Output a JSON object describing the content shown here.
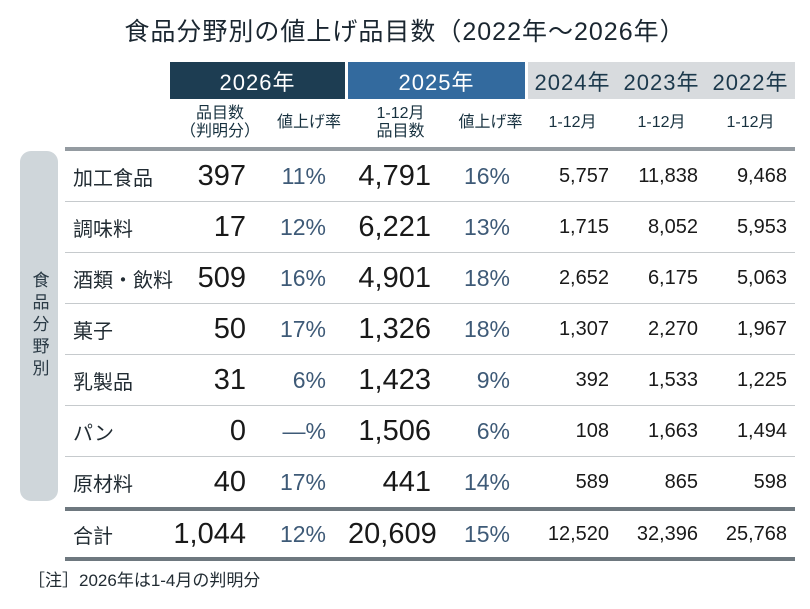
{
  "title": "食品分野別の値上げ品目数（2022年～2026年）",
  "side_label": "食品分野別",
  "note": "［注］2026年は1-4月の判明分",
  "colors": {
    "header_2026_bg": "#1d3d52",
    "header_2025_bg": "#336a9e",
    "header_past_bg": "#d8dbde",
    "rate_text": "#3e5a77",
    "side_bar_bg": "#cfd6da",
    "number_text": "#191919"
  },
  "table": {
    "year_groups": {
      "y2026": "2026年",
      "y2025": "2025年",
      "y2024": "2024年",
      "y2023": "2023年",
      "y2022": "2022年"
    },
    "sub_headers": {
      "items_2026": "品目数\n（判明分）",
      "rate_2026": "値上げ率",
      "items_2025": "1-12月\n品目数",
      "rate_2025": "値上げ率",
      "m_2024": "1-12月",
      "m_2023": "1-12月",
      "m_2022": "1-12月"
    },
    "rows": [
      {
        "category": "加工食品",
        "items_2026": "397",
        "rate_2026": "11%",
        "items_2025": "4,791",
        "rate_2025": "16%",
        "y2024": "5,757",
        "y2023": "11,838",
        "y2022": "9,468"
      },
      {
        "category": "調味料",
        "items_2026": "17",
        "rate_2026": "12%",
        "items_2025": "6,221",
        "rate_2025": "13%",
        "y2024": "1,715",
        "y2023": "8,052",
        "y2022": "5,953"
      },
      {
        "category": "酒類・飲料",
        "items_2026": "509",
        "rate_2026": "16%",
        "items_2025": "4,901",
        "rate_2025": "18%",
        "y2024": "2,652",
        "y2023": "6,175",
        "y2022": "5,063"
      },
      {
        "category": "菓子",
        "items_2026": "50",
        "rate_2026": "17%",
        "items_2025": "1,326",
        "rate_2025": "18%",
        "y2024": "1,307",
        "y2023": "2,270",
        "y2022": "1,967"
      },
      {
        "category": "乳製品",
        "items_2026": "31",
        "rate_2026": "6%",
        "items_2025": "1,423",
        "rate_2025": "9%",
        "y2024": "392",
        "y2023": "1,533",
        "y2022": "1,225"
      },
      {
        "category": "パン",
        "items_2026": "0",
        "rate_2026": "—%",
        "items_2025": "1,506",
        "rate_2025": "6%",
        "y2024": "108",
        "y2023": "1,663",
        "y2022": "1,494"
      },
      {
        "category": "原材料",
        "items_2026": "40",
        "rate_2026": "17%",
        "items_2025": "441",
        "rate_2025": "14%",
        "y2024": "589",
        "y2023": "865",
        "y2022": "598"
      }
    ],
    "total": {
      "category": "合計",
      "items_2026": "1,044",
      "rate_2026": "12%",
      "items_2025": "20,609",
      "rate_2025": "15%",
      "y2024": "12,520",
      "y2023": "32,396",
      "y2022": "25,768"
    }
  },
  "chart_data": {
    "type": "table",
    "title": "食品分野別の値上げ品目数（2022年～2026年）",
    "columns": [
      "食品分野",
      "2026年 品目数（判明分）",
      "2026年 値上げ率",
      "2025年 1-12月品目数",
      "2025年 値上げ率",
      "2024年 1-12月",
      "2023年 1-12月",
      "2022年 1-12月"
    ],
    "rows": [
      [
        "加工食品",
        397,
        "11%",
        4791,
        "16%",
        5757,
        11838,
        9468
      ],
      [
        "調味料",
        17,
        "12%",
        6221,
        "13%",
        1715,
        8052,
        5953
      ],
      [
        "酒類・飲料",
        509,
        "16%",
        4901,
        "18%",
        2652,
        6175,
        5063
      ],
      [
        "菓子",
        50,
        "17%",
        1326,
        "18%",
        1307,
        2270,
        1967
      ],
      [
        "乳製品",
        31,
        "6%",
        1423,
        "9%",
        392,
        1533,
        1225
      ],
      [
        "パン",
        0,
        "—%",
        1506,
        "6%",
        108,
        1663,
        1494
      ],
      [
        "原材料",
        40,
        "17%",
        441,
        "14%",
        589,
        865,
        598
      ],
      [
        "合計",
        1044,
        "12%",
        20609,
        "15%",
        12520,
        32396,
        25768
      ]
    ],
    "note": "2026年は1-4月の判明分"
  }
}
